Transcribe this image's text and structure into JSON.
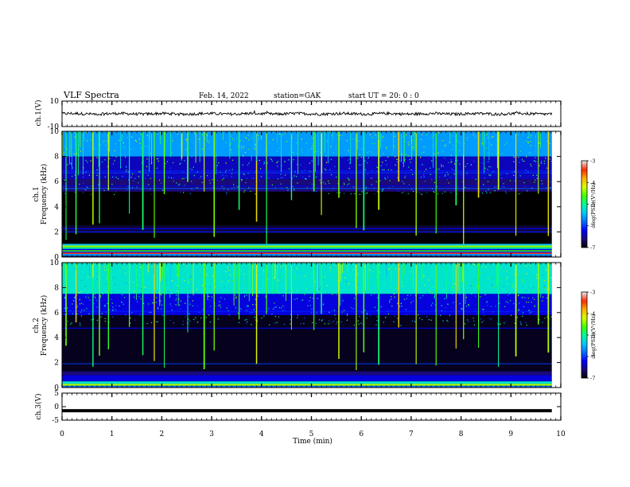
{
  "header": {
    "title": "VLF Spectra",
    "date": "Feb. 14, 2022",
    "station": "station=GAK",
    "start_ut": "start UT =  20: 0  : 0"
  },
  "colorbar_colors": [
    "#000000",
    "#1a0a7a",
    "#0000ff",
    "#0070ff",
    "#00c8ff",
    "#00ff9a",
    "#44ff00",
    "#d8ff00",
    "#ffb000",
    "#ff2a00",
    "#e8e8e8"
  ],
  "chart_data": [
    {
      "id": "ch1_waveform",
      "type": "line",
      "ylabel": "ch.1(V)",
      "ylim": [
        -10,
        10
      ],
      "yticks": [
        "10",
        "-10"
      ],
      "xlim": [
        0,
        10
      ],
      "series": [
        {
          "x_range": [
            0,
            9.82
          ],
          "mean": 0,
          "noise_amplitude": 1.1
        }
      ]
    },
    {
      "id": "ch1_spectrogram",
      "type": "heatmap",
      "ylabel_top": "ch.1",
      "ylabel": "Frequency (kHz)",
      "ylim": [
        0,
        10
      ],
      "yticks": [
        "0",
        "2",
        "4",
        "6",
        "8",
        "10"
      ],
      "xlim": [
        0,
        10
      ],
      "data_extent_min": 9.82,
      "colorbar": {
        "label": "log(PSD)(V²/Hz)",
        "ticks": [
          "-3",
          "-4",
          "-5",
          "-6",
          "-7"
        ],
        "range": [
          -7,
          -3
        ]
      },
      "bands": [
        {
          "f": [
            0.0,
            0.1
          ],
          "logpsd": -6.6
        },
        {
          "f": [
            0.1,
            0.25
          ],
          "logpsd": -5.6
        },
        {
          "f": [
            0.25,
            0.35
          ],
          "logpsd": -3.4
        },
        {
          "f": [
            0.35,
            0.45
          ],
          "logpsd": -6.0
        },
        {
          "f": [
            0.45,
            0.55
          ],
          "logpsd": -4.6
        },
        {
          "f": [
            0.55,
            0.65
          ],
          "logpsd": -6.2
        },
        {
          "f": [
            0.65,
            0.78
          ],
          "logpsd": -5.1
        },
        {
          "f": [
            0.78,
            0.92
          ],
          "logpsd": -4.4
        },
        {
          "f": [
            0.92,
            1.05
          ],
          "logpsd": -5.4
        },
        {
          "f": [
            1.05,
            1.9
          ],
          "logpsd": -7.0
        },
        {
          "f": [
            1.9,
            2.5
          ],
          "logpsd": -6.8
        },
        {
          "f": [
            2.5,
            5.2
          ],
          "logpsd": -7.0
        },
        {
          "f": [
            5.2,
            6.2
          ],
          "logpsd": -6.6
        },
        {
          "f": [
            6.2,
            8.0
          ],
          "logpsd": -6.4
        },
        {
          "f": [
            8.0,
            10.0
          ],
          "logpsd": -5.6
        }
      ],
      "lines": [
        {
          "f": 2.0,
          "logpsd": -6.1
        },
        {
          "f": 2.25,
          "logpsd": -6.2
        },
        {
          "f": 5.45,
          "logpsd": -5.9
        },
        {
          "f": 5.65,
          "logpsd": -6.2
        },
        {
          "f": 6.7,
          "logpsd": -6.0
        },
        {
          "f": 6.85,
          "logpsd": -6.1
        }
      ],
      "sferic_times_min": [
        0.08,
        0.28,
        0.62,
        0.75,
        0.93,
        1.35,
        1.62,
        1.85,
        2.05,
        2.52,
        2.85,
        3.05,
        3.55,
        3.9,
        4.1,
        4.6,
        5.05,
        5.2,
        5.55,
        5.9,
        6.05,
        6.35,
        6.75,
        7.1,
        7.5,
        7.9,
        8.05,
        8.35,
        8.75,
        9.1,
        9.55,
        9.75
      ]
    },
    {
      "id": "ch2_spectrogram",
      "type": "heatmap",
      "ylabel_top": "ch.2",
      "ylabel": "Frequency (kHz)",
      "ylim": [
        0,
        10
      ],
      "yticks": [
        "0",
        "2",
        "4",
        "6",
        "8",
        "10"
      ],
      "xlim": [
        0,
        10
      ],
      "data_extent_min": 9.82,
      "colorbar": {
        "label": "log(PSD)(V²/Hz)",
        "ticks": [
          "-3",
          "-4",
          "-5",
          "-6",
          "-7"
        ],
        "range": [
          -7,
          -3
        ]
      },
      "bands": [
        {
          "f": [
            0.0,
            0.15
          ],
          "logpsd": -5.8
        },
        {
          "f": [
            0.15,
            0.3
          ],
          "logpsd": -4.3
        },
        {
          "f": [
            0.3,
            0.5
          ],
          "logpsd": -5.2
        },
        {
          "f": [
            0.5,
            1.0
          ],
          "logpsd": -6.3
        },
        {
          "f": [
            1.0,
            1.3
          ],
          "logpsd": -6.6
        },
        {
          "f": [
            1.3,
            5.8
          ],
          "logpsd": -6.9
        },
        {
          "f": [
            5.8,
            7.5
          ],
          "logpsd": -6.3
        },
        {
          "f": [
            7.5,
            10.0
          ],
          "logpsd": -5.2
        }
      ],
      "lines": [
        {
          "f": 1.9,
          "logpsd": -6.0
        },
        {
          "f": 4.75,
          "logpsd": -6.2
        },
        {
          "f": 6.1,
          "logpsd": -6.1
        }
      ],
      "sferic_times_min": [
        0.08,
        0.28,
        0.62,
        0.75,
        0.93,
        1.35,
        1.62,
        1.85,
        2.05,
        2.52,
        2.85,
        3.05,
        3.55,
        3.9,
        4.1,
        4.6,
        5.05,
        5.2,
        5.55,
        5.9,
        6.05,
        6.35,
        6.75,
        7.1,
        7.5,
        7.9,
        8.05,
        8.35,
        8.75,
        9.1,
        9.55,
        9.75
      ]
    },
    {
      "id": "ch3_waveform",
      "type": "line",
      "ylabel": "ch.3(V)",
      "ylim": [
        -5,
        5
      ],
      "yticks": [
        "5",
        "0",
        "-5"
      ],
      "xlim": [
        0,
        10
      ],
      "xticks": [
        "0",
        "1",
        "2",
        "3",
        "4",
        "5",
        "6",
        "7",
        "8",
        "9",
        "10"
      ],
      "xlabel": "Time (min)",
      "series": [
        {
          "x_range": [
            0,
            9.82
          ],
          "y": -1.5
        }
      ]
    }
  ]
}
